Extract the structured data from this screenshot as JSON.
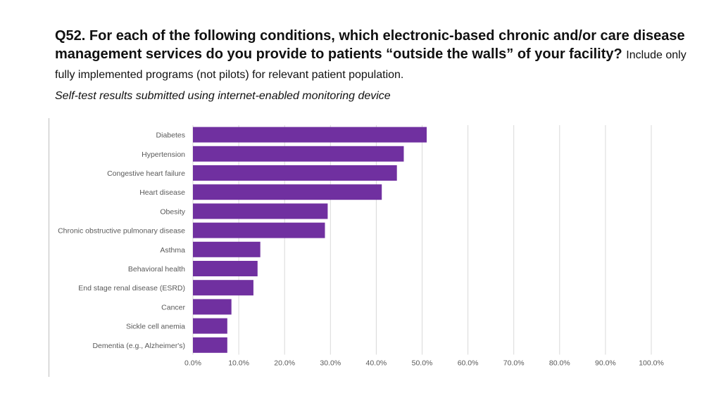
{
  "header": {
    "title_bold": "Q52. For each of the following conditions, which electronic-based chronic and/or care disease management services do you provide to patients “outside the walls” of your facility?",
    "title_note": "Include only fully implemented programs (not pilots) for relevant patient population.",
    "subtitle": "Self-test results submitted using internet-enabled monitoring device"
  },
  "colors": {
    "bar": "#7030a0",
    "grid": "#d9d9d9",
    "text": "#595959"
  },
  "chart_data": {
    "type": "bar",
    "orientation": "horizontal",
    "categories": [
      "Diabetes",
      "Hypertension",
      "Congestive heart failure",
      "Heart disease",
      "Obesity",
      "Chronic obstructive pulmonary disease",
      "Asthma",
      "Behavioral health",
      "End stage renal disease (ESRD)",
      "Cancer",
      "Sickle cell anemia",
      "Dementia (e.g., Alzheimer's)"
    ],
    "values": [
      51.0,
      46.0,
      44.5,
      41.2,
      29.4,
      28.8,
      14.7,
      14.1,
      13.2,
      8.4,
      7.5,
      7.5
    ],
    "xlim": [
      0,
      100
    ],
    "ticks": [
      0,
      10,
      20,
      30,
      40,
      50,
      60,
      70,
      80,
      90,
      100
    ],
    "tick_labels": [
      "0.0%",
      "10.0%",
      "20.0%",
      "30.0%",
      "40.0%",
      "50.0%",
      "60.0%",
      "70.0%",
      "80.0%",
      "90.0%",
      "100.0%"
    ],
    "grid": true,
    "legend": "none",
    "xlabel": "",
    "ylabel": ""
  }
}
